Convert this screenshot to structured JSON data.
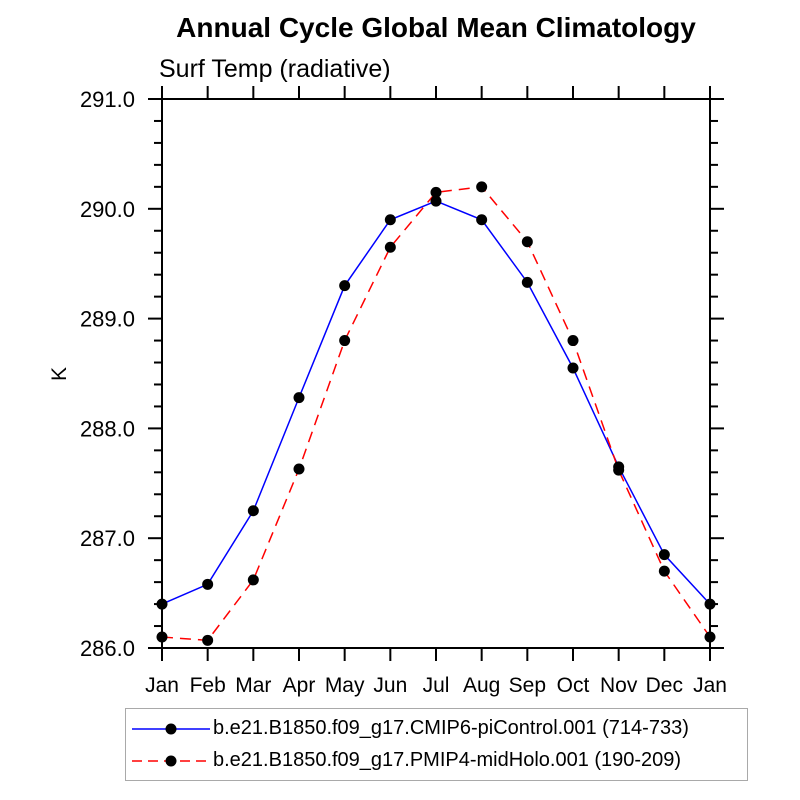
{
  "title": "Annual Cycle Global Mean Climatology",
  "subtitle": "Surf Temp (radiative)",
  "ylabel": "K",
  "chart_data": {
    "type": "line",
    "x_categories": [
      "Jan",
      "Feb",
      "Mar",
      "Apr",
      "May",
      "Jun",
      "Jul",
      "Aug",
      "Sep",
      "Oct",
      "Nov",
      "Dec",
      "Jan"
    ],
    "ylim": [
      286.0,
      291.0
    ],
    "ytick_major": 1.0,
    "ytick_minor": 0.2,
    "grid": "off",
    "legend_position": "bottom",
    "marker_color": "#000000",
    "frame_color": "#000000",
    "series": [
      {
        "name": "b.e21.B1850.f09_g17.CMIP6-piControl.001 (714-733)",
        "color": "#0000ff",
        "line_style": "solid",
        "marker": "black-dot",
        "values": [
          286.4,
          286.58,
          287.25,
          288.28,
          289.3,
          289.9,
          290.07,
          289.9,
          289.33,
          288.55,
          287.65,
          286.85,
          286.4
        ]
      },
      {
        "name": "b.e21.B1850.f09_g17.PMIP4-midHolo.001 (190-209)",
        "color": "#ff0000",
        "line_style": "dashed",
        "marker": "black-dot",
        "values": [
          286.1,
          286.07,
          286.62,
          287.63,
          288.8,
          289.65,
          290.15,
          290.2,
          289.7,
          288.8,
          287.62,
          286.7,
          286.1
        ]
      }
    ]
  }
}
